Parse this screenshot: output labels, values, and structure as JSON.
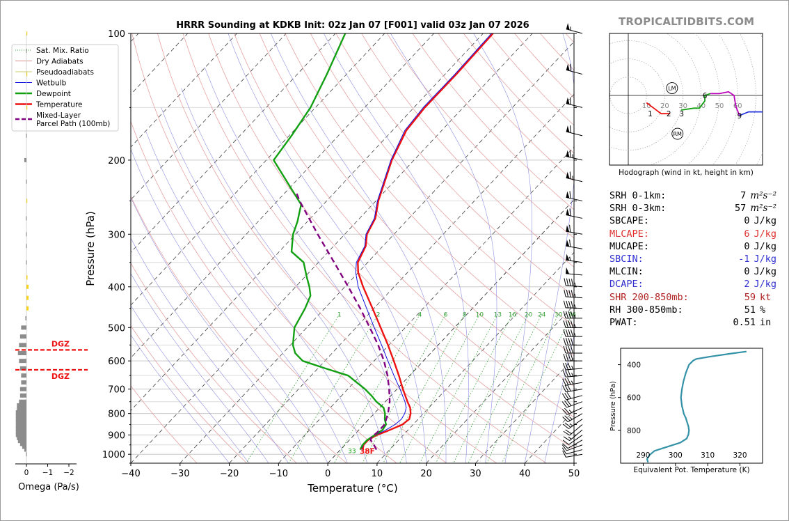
{
  "watermark": "TROPICALTIDBITS.COM",
  "chart_data": {
    "type": "skew-t",
    "title": "HRRR Sounding at KDKB Init: 02z Jan 07 [F001] valid 03z Jan 07 2026",
    "xlabel": "Temperature (°C)",
    "ylabel": "Pressure (hPa)",
    "xlim": [
      -40,
      50
    ],
    "ylim_hpa": [
      1050,
      100
    ],
    "x_ticks": [
      "−40",
      "−30",
      "−20",
      "−10",
      "0",
      "10",
      "20",
      "30",
      "40",
      "50"
    ],
    "x_tick_values": [
      -40,
      -30,
      -20,
      -10,
      0,
      10,
      20,
      30,
      40,
      50
    ],
    "y_ticks": [
      "100",
      "200",
      "300",
      "400",
      "500",
      "600",
      "700",
      "800",
      "900",
      "1000"
    ],
    "y_tick_values": [
      100,
      200,
      300,
      400,
      500,
      600,
      700,
      800,
      900,
      1000
    ],
    "mixing_ratio_labels": [
      "1",
      "2",
      "4",
      "6",
      "8",
      "10",
      "13",
      "16",
      "20",
      "24",
      "30",
      "36"
    ],
    "mixing_ratio_values": [
      1,
      2,
      4,
      6,
      8,
      10,
      13,
      16,
      20,
      24,
      30,
      36
    ],
    "surface_temp_label": "38F",
    "surface_dew_label": "33",
    "legend": [
      {
        "label": "Sat. Mix. Ratio",
        "color": "#2ca02c",
        "style": "dotted"
      },
      {
        "label": "Dry Adiabats",
        "color": "#d98c8c",
        "style": "solid"
      },
      {
        "label": "Pseudoadiabats",
        "color": "#cccc66",
        "style": "solid"
      },
      {
        "label": "Wetbulb",
        "color": "#1010e0",
        "style": "solid"
      },
      {
        "label": "Dewpoint",
        "color": "#12a012",
        "style": "solid"
      },
      {
        "label": "Temperature",
        "color": "#ee1111",
        "style": "solid"
      },
      {
        "label": "Mixed-Layer\nParcel Path (100mb)",
        "color": "#800080",
        "style": "dashed"
      }
    ],
    "series": [
      {
        "name": "Temperature",
        "color": "#ee1111",
        "points": [
          [
            975,
            4.5
          ],
          [
            950,
            3.8
          ],
          [
            925,
            3.8
          ],
          [
            900,
            4.6
          ],
          [
            880,
            6.0
          ],
          [
            850,
            7.8
          ],
          [
            825,
            8.2
          ],
          [
            800,
            7.4
          ],
          [
            775,
            6.2
          ],
          [
            750,
            4.5
          ],
          [
            700,
            1.2
          ],
          [
            650,
            -2.2
          ],
          [
            600,
            -6.0
          ],
          [
            550,
            -10.2
          ],
          [
            500,
            -15.0
          ],
          [
            450,
            -20.3
          ],
          [
            400,
            -26.3
          ],
          [
            370,
            -30.0
          ],
          [
            350,
            -32.0
          ],
          [
            320,
            -33.5
          ],
          [
            300,
            -35.5
          ],
          [
            275,
            -36.8
          ],
          [
            250,
            -39.5
          ],
          [
            200,
            -44.5
          ],
          [
            170,
            -47.2
          ],
          [
            150,
            -47.8
          ],
          [
            125,
            -47.7
          ],
          [
            100,
            -48.0
          ]
        ]
      },
      {
        "name": "Wetbulb",
        "color": "#1010e0",
        "points": [
          [
            975,
            4.3
          ],
          [
            950,
            3.7
          ],
          [
            925,
            3.7
          ],
          [
            900,
            4.4
          ],
          [
            875,
            5.5
          ],
          [
            850,
            6.3
          ],
          [
            825,
            6.6
          ],
          [
            800,
            6.2
          ],
          [
            775,
            5.4
          ],
          [
            750,
            4.0
          ],
          [
            700,
            0.6
          ],
          [
            650,
            -3.2
          ],
          [
            600,
            -7.2
          ],
          [
            550,
            -11.5
          ],
          [
            500,
            -16.3
          ],
          [
            450,
            -21.5
          ],
          [
            400,
            -27.3
          ],
          [
            370,
            -30.5
          ],
          [
            350,
            -32.3
          ],
          [
            320,
            -33.7
          ],
          [
            300,
            -35.7
          ],
          [
            275,
            -37.0
          ],
          [
            250,
            -39.7
          ],
          [
            200,
            -44.7
          ],
          [
            170,
            -47.5
          ],
          [
            150,
            -48.1
          ],
          [
            125,
            -48.0
          ],
          [
            100,
            -48.3
          ]
        ]
      },
      {
        "name": "Dewpoint",
        "color": "#12a012",
        "points": [
          [
            975,
            4.0
          ],
          [
            950,
            3.6
          ],
          [
            925,
            3.6
          ],
          [
            900,
            4.2
          ],
          [
            875,
            4.8
          ],
          [
            850,
            4.5
          ],
          [
            825,
            3.2
          ],
          [
            800,
            2.2
          ],
          [
            775,
            0.8
          ],
          [
            750,
            -1.8
          ],
          [
            725,
            -4.0
          ],
          [
            700,
            -6.5
          ],
          [
            650,
            -12.5
          ],
          [
            625,
            -18.5
          ],
          [
            600,
            -24.5
          ],
          [
            575,
            -27.5
          ],
          [
            550,
            -29.5
          ],
          [
            500,
            -32.5
          ],
          [
            450,
            -34.0
          ],
          [
            420,
            -35.3
          ],
          [
            400,
            -37.2
          ],
          [
            380,
            -39.5
          ],
          [
            350,
            -43.0
          ],
          [
            330,
            -47.5
          ],
          [
            300,
            -50.5
          ],
          [
            280,
            -52.0
          ],
          [
            255,
            -54.5
          ],
          [
            240,
            -58.0
          ],
          [
            200,
            -68.5
          ],
          [
            175,
            -69.5
          ],
          [
            150,
            -71.0
          ],
          [
            125,
            -74.0
          ],
          [
            100,
            -78.0
          ]
        ]
      },
      {
        "name": "Parcel",
        "color": "#800080",
        "points": [
          [
            975,
            7.3
          ],
          [
            950,
            5.9
          ],
          [
            925,
            4.3
          ],
          [
            910,
            3.9
          ],
          [
            890,
            4.2
          ],
          [
            850,
            4.2
          ],
          [
            800,
            2.8
          ],
          [
            750,
            0.9
          ],
          [
            700,
            -1.6
          ],
          [
            650,
            -4.5
          ],
          [
            600,
            -8.0
          ],
          [
            550,
            -12.2
          ],
          [
            500,
            -17.2
          ],
          [
            450,
            -22.8
          ],
          [
            400,
            -29.3
          ],
          [
            350,
            -36.8
          ],
          [
            300,
            -45.5
          ],
          [
            250,
            -55.5
          ],
          [
            240,
            -57.5
          ]
        ]
      }
    ],
    "wind_barbs": [
      {
        "p": 1000,
        "speed": 10,
        "dir": 260
      },
      {
        "p": 975,
        "speed": 10,
        "dir": 255
      },
      {
        "p": 950,
        "speed": 10,
        "dir": 250
      },
      {
        "p": 925,
        "speed": 10,
        "dir": 240
      },
      {
        "p": 900,
        "speed": 10,
        "dir": 235
      },
      {
        "p": 875,
        "speed": 15,
        "dir": 230
      },
      {
        "p": 850,
        "speed": 20,
        "dir": 230
      },
      {
        "p": 825,
        "speed": 25,
        "dir": 235
      },
      {
        "p": 800,
        "speed": 25,
        "dir": 240
      },
      {
        "p": 775,
        "speed": 25,
        "dir": 245
      },
      {
        "p": 750,
        "speed": 30,
        "dir": 250
      },
      {
        "p": 725,
        "speed": 30,
        "dir": 255
      },
      {
        "p": 700,
        "speed": 30,
        "dir": 260
      },
      {
        "p": 675,
        "speed": 35,
        "dir": 260
      },
      {
        "p": 650,
        "speed": 35,
        "dir": 265
      },
      {
        "p": 625,
        "speed": 35,
        "dir": 265
      },
      {
        "p": 600,
        "speed": 40,
        "dir": 270
      },
      {
        "p": 575,
        "speed": 40,
        "dir": 270
      },
      {
        "p": 550,
        "speed": 40,
        "dir": 270
      },
      {
        "p": 525,
        "speed": 45,
        "dir": 270
      },
      {
        "p": 500,
        "speed": 45,
        "dir": 270
      },
      {
        "p": 475,
        "speed": 45,
        "dir": 270
      },
      {
        "p": 450,
        "speed": 45,
        "dir": 272
      },
      {
        "p": 425,
        "speed": 45,
        "dir": 274
      },
      {
        "p": 400,
        "speed": 45,
        "dir": 275
      },
      {
        "p": 375,
        "speed": 50,
        "dir": 275
      },
      {
        "p": 350,
        "speed": 55,
        "dir": 278
      },
      {
        "p": 325,
        "speed": 60,
        "dir": 280
      },
      {
        "p": 300,
        "speed": 60,
        "dir": 280
      },
      {
        "p": 275,
        "speed": 60,
        "dir": 282
      },
      {
        "p": 250,
        "speed": 60,
        "dir": 282
      },
      {
        "p": 225,
        "speed": 65,
        "dir": 283
      },
      {
        "p": 200,
        "speed": 65,
        "dir": 283
      },
      {
        "p": 175,
        "speed": 60,
        "dir": 284
      },
      {
        "p": 150,
        "speed": 60,
        "dir": 284
      },
      {
        "p": 125,
        "speed": 60,
        "dir": 285
      },
      {
        "p": 100,
        "speed": 55,
        "dir": 285
      }
    ],
    "omega": {
      "xlabel": "Omega (Pa/s)",
      "x_ticks": [
        "0",
        "−1",
        "−2"
      ],
      "x_tick_values": [
        0,
        -1,
        -2
      ],
      "xlim": [
        0.5,
        -2.5
      ],
      "dgz_label": "DGZ",
      "dgz_pressures": [
        565,
        630
      ],
      "bars": [
        [
          1000,
          0.02
        ],
        [
          975,
          0.1
        ],
        [
          960,
          0.2
        ],
        [
          945,
          0.3
        ],
        [
          930,
          0.4
        ],
        [
          915,
          0.45
        ],
        [
          900,
          0.5
        ],
        [
          885,
          0.5
        ],
        [
          870,
          0.5
        ],
        [
          855,
          0.5
        ],
        [
          840,
          0.5
        ],
        [
          825,
          0.5
        ],
        [
          810,
          0.5
        ],
        [
          795,
          0.5
        ],
        [
          780,
          0.45
        ],
        [
          765,
          0.45
        ],
        [
          750,
          0.35
        ],
        [
          725,
          0.3
        ],
        [
          700,
          0.3
        ],
        [
          675,
          0.25
        ],
        [
          650,
          0.25
        ],
        [
          625,
          0.3
        ],
        [
          600,
          0.35
        ],
        [
          575,
          0.4
        ],
        [
          550,
          0.35
        ],
        [
          525,
          0.3
        ],
        [
          500,
          0.25
        ],
        [
          475,
          0.05
        ],
        [
          450,
          -0.1
        ],
        [
          425,
          -0.1
        ],
        [
          400,
          -0.1
        ],
        [
          380,
          -0.05
        ],
        [
          350,
          0.02
        ],
        [
          320,
          0.02
        ],
        [
          300,
          0.02
        ],
        [
          275,
          0.03
        ],
        [
          250,
          -0.02
        ],
        [
          225,
          0.02
        ],
        [
          200,
          0.1
        ],
        [
          175,
          0.02
        ],
        [
          150,
          -0.02
        ],
        [
          125,
          -0.02
        ],
        [
          110,
          0.02
        ],
        [
          100,
          -0.02
        ]
      ]
    },
    "hodograph": {
      "title": "Hodograph (wind in kt, height in km)",
      "ring_labels": [
        "10",
        "20",
        "30",
        "40",
        "50",
        "60"
      ],
      "ring_values": [
        10,
        20,
        30,
        40,
        50,
        60
      ],
      "markers": [
        "LM",
        "RM"
      ],
      "marker_points": [
        [
          24,
          4
        ],
        [
          27,
          -21
        ]
      ],
      "height_labels": [
        "1",
        "2",
        "3",
        "6",
        "9"
      ],
      "height_points": [
        [
          12,
          -10
        ],
        [
          23,
          -10
        ],
        [
          27,
          -10
        ],
        [
          42,
          0
        ],
        [
          61,
          -11
        ]
      ],
      "segments": [
        {
          "color": "#ee1111",
          "points": [
            [
              10,
              -4
            ],
            [
              14,
              -7
            ],
            [
              18,
              -10
            ],
            [
              20,
              -10
            ],
            [
              22,
              -10
            ],
            [
              23,
              -10
            ]
          ]
        },
        {
          "color": "#12a012",
          "points": [
            [
              29,
              -8
            ],
            [
              36,
              -7
            ],
            [
              39,
              -7
            ],
            [
              42,
              -3
            ],
            [
              42,
              0
            ],
            [
              45,
              1
            ]
          ]
        },
        {
          "color": "#bb00bb",
          "points": [
            [
              45,
              1
            ],
            [
              50,
              1
            ],
            [
              55,
              2
            ],
            [
              58,
              0
            ],
            [
              59,
              -6
            ],
            [
              61,
              -11
            ]
          ]
        },
        {
          "color": "#2233dd",
          "points": [
            [
              61,
              -11
            ],
            [
              66,
              -9
            ],
            [
              71,
              -9
            ],
            [
              75,
              -9
            ]
          ]
        }
      ]
    },
    "theta_e": {
      "xlabel": "Equivalent Pot. Temperature (K)",
      "ylabel": "Pressure (hPa)",
      "x_ticks": [
        "290",
        "300",
        "310",
        "320"
      ],
      "x_tick_values": [
        290,
        300,
        310,
        320
      ],
      "y_ticks": [
        "400",
        "600",
        "800"
      ],
      "y_tick_values": [
        400,
        600,
        800
      ],
      "xlim": [
        283,
        327
      ],
      "ylim": [
        1000,
        300
      ],
      "points": [
        [
          291.5,
          995
        ],
        [
          291.2,
          975
        ],
        [
          292.0,
          950
        ],
        [
          293.5,
          925
        ],
        [
          297.5,
          900
        ],
        [
          301.5,
          875
        ],
        [
          303.5,
          850
        ],
        [
          304.0,
          825
        ],
        [
          304.2,
          800
        ],
        [
          304.0,
          775
        ],
        [
          303.6,
          750
        ],
        [
          303.2,
          725
        ],
        [
          302.6,
          700
        ],
        [
          302.0,
          650
        ],
        [
          301.7,
          600
        ],
        [
          302.0,
          550
        ],
        [
          302.5,
          500
        ],
        [
          303.2,
          450
        ],
        [
          304.2,
          400
        ],
        [
          305.5,
          375
        ],
        [
          306.5,
          365
        ],
        [
          311.0,
          350
        ],
        [
          318.0,
          330
        ],
        [
          322.0,
          320
        ]
      ]
    }
  },
  "params": [
    {
      "label": "SRH 0-1km:",
      "value": "7",
      "unit": "m²s⁻²",
      "color": "#000000"
    },
    {
      "label": "SRH 0-3km:",
      "value": "57",
      "unit": "m²s⁻²",
      "color": "#000000"
    },
    {
      "label": "SBCAPE:",
      "value": "0",
      "unit": "J/kg",
      "color": "#000000"
    },
    {
      "label": "MLCAPE:",
      "value": "6",
      "unit": "J/kg",
      "color": "#e03030"
    },
    {
      "label": "MUCAPE:",
      "value": "0",
      "unit": "J/kg",
      "color": "#000000"
    },
    {
      "label": "SBCIN:",
      "value": "-1",
      "unit": "J/kg",
      "color": "#3030d0"
    },
    {
      "label": "MLCIN:",
      "value": "0",
      "unit": "J/kg",
      "color": "#000000"
    },
    {
      "label": "DCAPE:",
      "value": "2",
      "unit": "J/kg",
      "color": "#3030d0"
    },
    {
      "label": "SHR 200-850mb:",
      "value": "59",
      "unit": "kt",
      "color": "#b02020"
    },
    {
      "label": "RH 300-850mb:",
      "value": "51",
      "unit": "%",
      "color": "#000000"
    },
    {
      "label": "PWAT:",
      "value": "0.51",
      "unit": "in",
      "color": "#000000"
    }
  ]
}
